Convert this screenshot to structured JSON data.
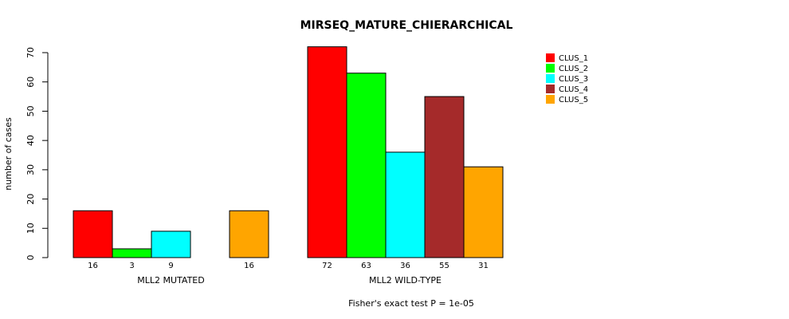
{
  "chart_data": {
    "type": "bar",
    "title": "MIRSEQ_MATURE_CHIERARCHICAL",
    "ylabel": "number of cases",
    "footnote": "Fisher's exact test P = 1e-05",
    "ylim": [
      0,
      70
    ],
    "yticks": [
      0,
      10,
      20,
      30,
      40,
      50,
      60,
      70
    ],
    "grid": false,
    "legend_position": "top-right",
    "series": [
      {
        "name": "CLUS_1",
        "color": "#FF0000"
      },
      {
        "name": "CLUS_2",
        "color": "#00FF00"
      },
      {
        "name": "CLUS_3",
        "color": "#00FFFF"
      },
      {
        "name": "CLUS_4",
        "color": "#A52A2A"
      },
      {
        "name": "CLUS_5",
        "color": "#FFA500"
      }
    ],
    "groups": [
      {
        "label": "MLL2 MUTATED",
        "values": [
          16,
          3,
          9,
          0,
          16
        ],
        "value_labels": [
          "16",
          "3",
          "9",
          "",
          "16"
        ]
      },
      {
        "label": "MLL2 WILD-TYPE",
        "values": [
          72,
          63,
          36,
          55,
          31
        ],
        "value_labels": [
          "72",
          "63",
          "36",
          "55",
          "31"
        ]
      }
    ]
  }
}
